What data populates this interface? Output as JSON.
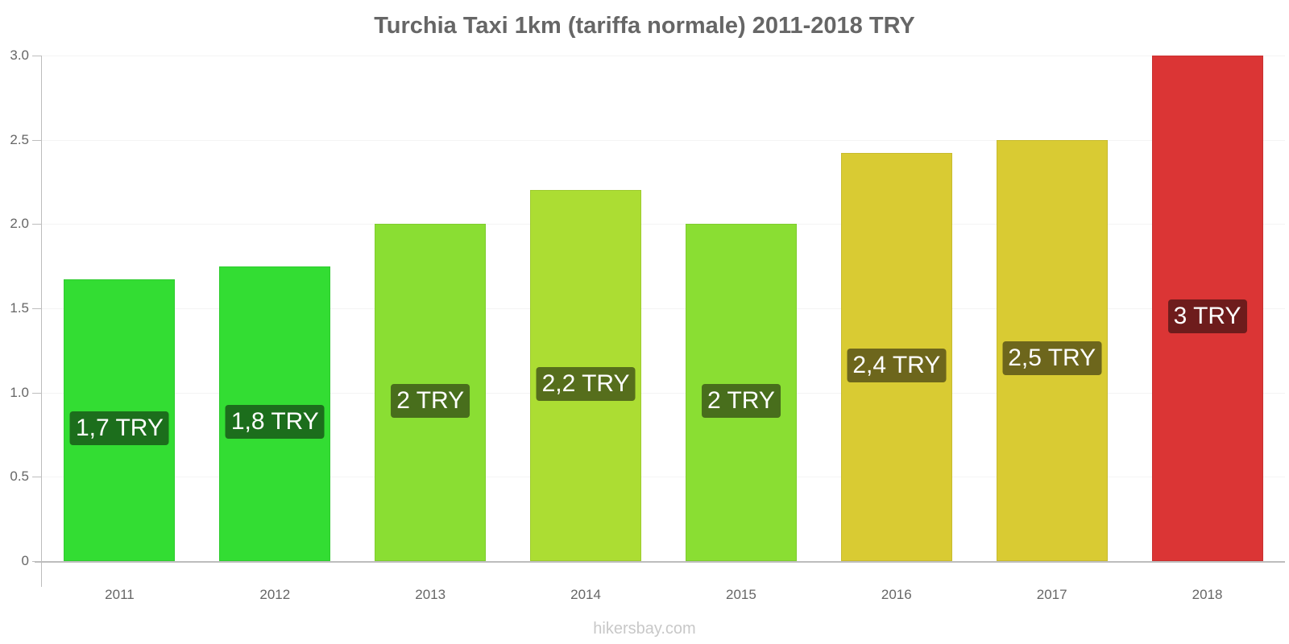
{
  "chart_data": {
    "type": "bar",
    "title": "Turchia Taxi 1km (tariffa normale) 2011-2018 TRY",
    "xlabel": "",
    "ylabel": "",
    "ylim": [
      0,
      3.0
    ],
    "yticks": [
      "0",
      "0.5",
      "1.0",
      "1.5",
      "2.0",
      "2.5",
      "3.0"
    ],
    "grid": true,
    "legend": null,
    "categories": [
      "2011",
      "2012",
      "2013",
      "2014",
      "2015",
      "2016",
      "2017",
      "2018"
    ],
    "values": [
      1.67,
      1.75,
      2.0,
      2.2,
      2.0,
      2.42,
      2.5,
      3.0
    ],
    "data_labels": [
      "1,7 TRY",
      "1,8 TRY",
      "2 TRY",
      "2,2 TRY",
      "2 TRY",
      "2,4 TRY",
      "2,5 TRY",
      "3 TRY"
    ],
    "bar_colors": [
      "#33dd33",
      "#33dd33",
      "#8ade33",
      "#acdd33",
      "#8ade33",
      "#d9cb33",
      "#d9cb33",
      "#db3535"
    ],
    "label_colors": [
      "#1c6e1c",
      "#1c6e1c",
      "#486e1c",
      "#566e1c",
      "#486e1c",
      "#6d661c",
      "#6d661c",
      "#6e1c1c"
    ]
  },
  "watermark": "hikersbay.com"
}
